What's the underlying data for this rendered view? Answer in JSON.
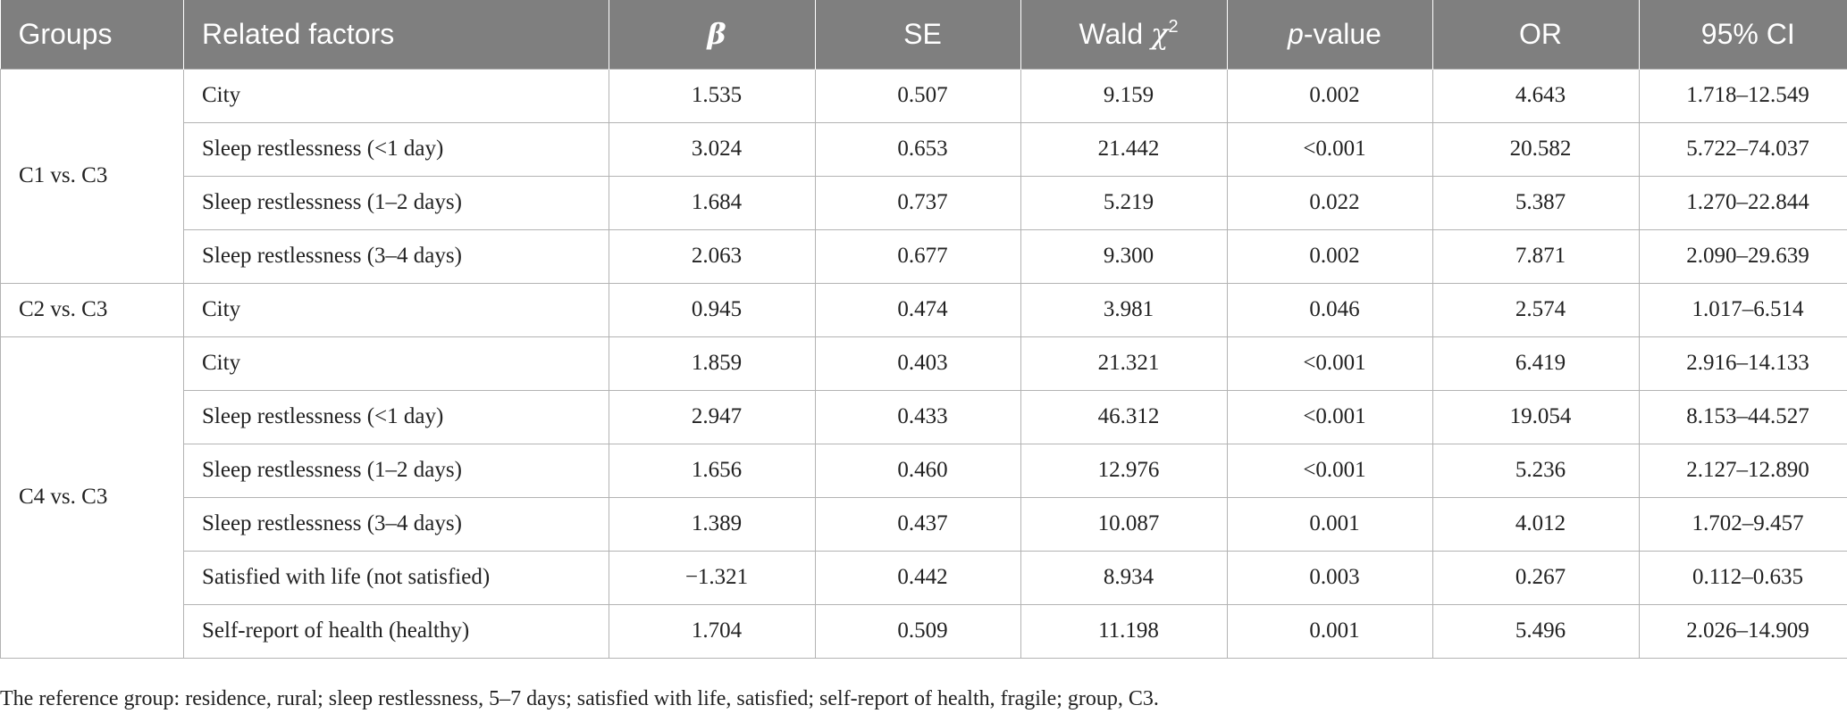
{
  "table": {
    "columns": {
      "groups": "Groups",
      "factors": "Related factors",
      "beta": "β",
      "se": "SE",
      "wald_word": "Wald",
      "wald_symbol": "χ",
      "wald_sup": "2",
      "p_italic": "p",
      "p_rest": "-value",
      "or": "OR",
      "ci": "95% CI"
    },
    "groups": [
      {
        "label": "C1 vs. C3",
        "rows": [
          {
            "factor": "City",
            "beta": "1.535",
            "se": "0.507",
            "wald": "9.159",
            "p": "0.002",
            "or": "4.643",
            "ci": "1.718–12.549"
          },
          {
            "factor": "Sleep restlessness (<1 day)",
            "beta": "3.024",
            "se": "0.653",
            "wald": "21.442",
            "p": "<0.001",
            "or": "20.582",
            "ci": "5.722–74.037"
          },
          {
            "factor": "Sleep restlessness (1–2 days)",
            "beta": "1.684",
            "se": "0.737",
            "wald": "5.219",
            "p": "0.022",
            "or": "5.387",
            "ci": "1.270–22.844"
          },
          {
            "factor": "Sleep restlessness (3–4 days)",
            "beta": "2.063",
            "se": "0.677",
            "wald": "9.300",
            "p": "0.002",
            "or": "7.871",
            "ci": "2.090–29.639"
          }
        ]
      },
      {
        "label": "C2 vs. C3",
        "rows": [
          {
            "factor": "City",
            "beta": "0.945",
            "se": "0.474",
            "wald": "3.981",
            "p": "0.046",
            "or": "2.574",
            "ci": "1.017–6.514"
          }
        ]
      },
      {
        "label": "C4 vs. C3",
        "rows": [
          {
            "factor": "City",
            "beta": "1.859",
            "se": "0.403",
            "wald": "21.321",
            "p": "<0.001",
            "or": "6.419",
            "ci": "2.916–14.133"
          },
          {
            "factor": "Sleep restlessness (<1 day)",
            "beta": "2.947",
            "se": "0.433",
            "wald": "46.312",
            "p": "<0.001",
            "or": "19.054",
            "ci": "8.153–44.527"
          },
          {
            "factor": "Sleep restlessness (1–2 days)",
            "beta": "1.656",
            "se": "0.460",
            "wald": "12.976",
            "p": "<0.001",
            "or": "5.236",
            "ci": "2.127–12.890"
          },
          {
            "factor": "Sleep restlessness (3–4 days)",
            "beta": "1.389",
            "se": "0.437",
            "wald": "10.087",
            "p": "0.001",
            "or": "4.012",
            "ci": "1.702–9.457"
          },
          {
            "factor": "Satisfied with life (not satisfied)",
            "beta": "−1.321",
            "se": "0.442",
            "wald": "8.934",
            "p": "0.003",
            "or": "0.267",
            "ci": "0.112–0.635"
          },
          {
            "factor": "Self-report of health (healthy)",
            "beta": "1.704",
            "se": "0.509",
            "wald": "11.198",
            "p": "0.001",
            "or": "5.496",
            "ci": "2.026–14.909"
          }
        ]
      }
    ]
  },
  "footnote": "The reference group: residence, rural; sleep restlessness, 5–7 days; satisfied with life, satisfied; self-report of health, fragile; group, C3.",
  "colors": {
    "header_bg": "#7f7f7f",
    "header_text": "#ffffff",
    "border": "#b3b3b3",
    "text": "#222222"
  }
}
